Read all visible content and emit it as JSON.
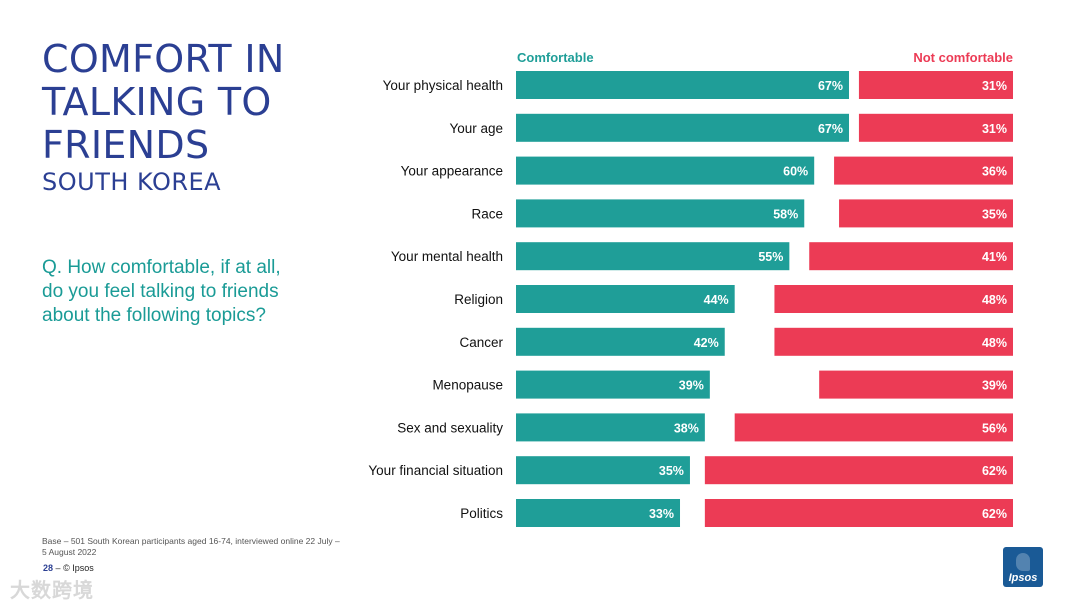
{
  "header": {
    "title_lines": [
      "COMFORT IN",
      "TALKING TO",
      "FRIENDS"
    ],
    "subtitle": "SOUTH KOREA",
    "question_lines": [
      "Q. How comfortable, if at all,",
      "do you feel talking to friends",
      "about the following topics?"
    ]
  },
  "footer": {
    "base_note": "Base – 501 South Korean participants aged 16-74, interviewed online 22 July – 5 August 2022",
    "page_number": "28",
    "page_sep": "–",
    "copyright": "© Ipsos",
    "logo_text": "Ipsos",
    "watermark": "大数跨境"
  },
  "colors": {
    "comfortable": "#1f9e98",
    "not_comfortable": "#ec3b55",
    "title": "#2b3f93"
  },
  "chart_data": {
    "type": "bar",
    "orientation": "diverging-horizontal",
    "categories": [
      "Your physical health",
      "Your age",
      "Your appearance",
      "Race",
      "Your mental health",
      "Religion",
      "Cancer",
      "Menopause",
      "Sex and sexuality",
      "Your financial situation",
      "Politics"
    ],
    "series": [
      {
        "name": "Comfortable",
        "values": [
          67,
          67,
          60,
          58,
          55,
          44,
          42,
          39,
          38,
          35,
          33
        ]
      },
      {
        "name": "Not comfortable",
        "values": [
          31,
          31,
          36,
          35,
          41,
          48,
          48,
          39,
          56,
          62,
          62
        ]
      }
    ],
    "value_suffix": "%",
    "xlim": [
      0,
      100
    ]
  }
}
